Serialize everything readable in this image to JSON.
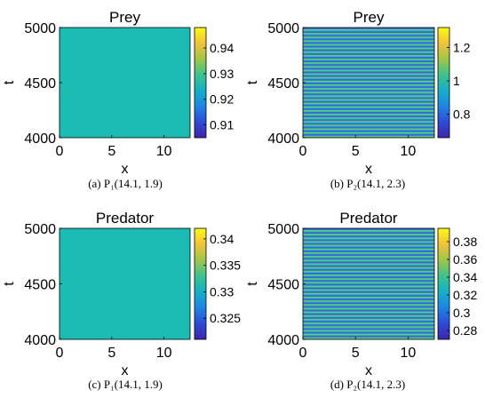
{
  "colors": {
    "uniform_prey": "#1cbcb4",
    "uniform_predator": "#1cbcb4",
    "stripe_dark": "#3a5ce0",
    "stripe_mid": "#21b8c4",
    "stripe_light": "#8fd33c",
    "colormap": [
      "#3e26a8",
      "#2e4ad6",
      "#1f85e3",
      "#14b0c8",
      "#3ec28c",
      "#a0c648",
      "#f2c13a",
      "#f9fb15"
    ]
  },
  "chart_data": [
    {
      "type": "heatmap",
      "title": "Prey",
      "xlabel": "x",
      "ylabel": "t",
      "caption": "(a)  P₁(14.1, 1.9)",
      "xlim": [
        0,
        12.5
      ],
      "ylim": [
        4000,
        5000
      ],
      "xticks": [
        0,
        5,
        10
      ],
      "yticks": [
        4000,
        4500,
        5000
      ],
      "pattern": "uniform",
      "field_value": 0.929,
      "colorbar": {
        "range": [
          0.905,
          0.948
        ],
        "ticks": [
          "0.91",
          "0.92",
          "0.93",
          "0.94"
        ],
        "tick_values": [
          0.91,
          0.92,
          0.93,
          0.94
        ]
      }
    },
    {
      "type": "heatmap",
      "title": "Prey",
      "xlabel": "x",
      "ylabel": "t",
      "caption": "(b)  P₂(14.1, 2.3)",
      "xlim": [
        0,
        12.5
      ],
      "ylim": [
        4000,
        5000
      ],
      "xticks": [
        0,
        5,
        10
      ],
      "yticks": [
        4000,
        4500,
        5000
      ],
      "pattern": "horizontal-stripes",
      "stripe_count": 30,
      "colorbar": {
        "range": [
          0.66,
          1.32
        ],
        "ticks": [
          "0.8",
          "1",
          "1.2"
        ],
        "tick_values": [
          0.8,
          1.0,
          1.2
        ]
      }
    },
    {
      "type": "heatmap",
      "title": "Predator",
      "xlabel": "x",
      "ylabel": "t",
      "caption": "(c)  P₁(14.1, 1.9)",
      "xlim": [
        0,
        12.5
      ],
      "ylim": [
        4000,
        5000
      ],
      "xticks": [
        0,
        5,
        10
      ],
      "yticks": [
        4000,
        4500,
        5000
      ],
      "pattern": "uniform",
      "field_value": 0.3325,
      "colorbar": {
        "range": [
          0.321,
          0.342
        ],
        "ticks": [
          "0.34",
          "0.335",
          "0.33",
          "0.325"
        ],
        "tick_values": [
          0.34,
          0.335,
          0.33,
          0.325
        ]
      }
    },
    {
      "type": "heatmap",
      "title": "Predator",
      "xlabel": "x",
      "ylabel": "t",
      "caption": "(d)  P₂(14.1, 2.3)",
      "xlim": [
        0,
        12.5
      ],
      "ylim": [
        4000,
        5000
      ],
      "xticks": [
        0,
        5,
        10
      ],
      "yticks": [
        4000,
        4500,
        5000
      ],
      "pattern": "horizontal-stripes",
      "stripe_count": 30,
      "colorbar": {
        "range": [
          0.27,
          0.395
        ],
        "ticks": [
          "0.38",
          "0.36",
          "0.34",
          "0.32",
          "0.3",
          "0.28"
        ],
        "tick_values": [
          0.38,
          0.36,
          0.34,
          0.32,
          0.3,
          0.28
        ]
      }
    }
  ]
}
